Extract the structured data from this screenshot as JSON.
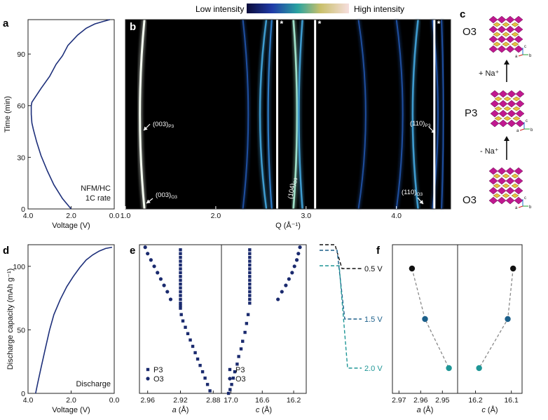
{
  "colorbar": {
    "low_label": "Low intensity",
    "high_label": "High intensity"
  },
  "panel_labels": {
    "a": "a",
    "b": "b",
    "c": "c",
    "d": "d",
    "e": "e",
    "f": "f"
  },
  "chart_data": [
    {
      "panel": "a",
      "type": "line",
      "xlabel": "Voltage (V)",
      "ylabel": "Time (min)",
      "xlim": [
        4.0,
        0.0
      ],
      "ylim": [
        0,
        110
      ],
      "xticks": [
        "4.0",
        "2.0",
        "0.0"
      ],
      "yticks": [
        "0",
        "30",
        "60",
        "90"
      ],
      "annotation": [
        "NFM/HC",
        "1C rate"
      ],
      "color": "#1d2f7a",
      "x": [
        2.0,
        2.4,
        2.8,
        3.1,
        3.4,
        3.6,
        3.75,
        3.82,
        3.85,
        3.85,
        3.82,
        3.4,
        3.0,
        2.7,
        2.4,
        2.15,
        1.7,
        1.3,
        0.9,
        0.5,
        0.2
      ],
      "y": [
        0,
        6,
        14,
        22,
        31,
        39,
        46,
        50,
        55,
        60,
        62,
        70,
        77,
        84,
        89,
        95,
        101,
        105,
        107.5,
        109,
        110
      ]
    },
    {
      "panel": "b",
      "type": "heatmap",
      "xlabel": "Q (Å⁻¹)",
      "xlim": [
        1.0,
        4.6
      ],
      "xticks": [
        "1.0",
        "2.0",
        "3.0",
        "4.0"
      ],
      "excluded_marks": [
        "*",
        "*",
        "*"
      ],
      "peak_labels": [
        "(003)P3",
        "(003)O3",
        "(104)O3",
        "(110)P3",
        "(110)O3"
      ],
      "reflections": [
        {
          "q_bottom": 1.21,
          "q_mid": 1.16,
          "q_top": 1.21,
          "intensity": 1.0
        },
        {
          "q_bottom": 2.3,
          "q_mid": 2.36,
          "q_top": 2.3,
          "intensity": 0.45
        },
        {
          "q_bottom": 2.56,
          "q_mid": 2.49,
          "q_top": 2.56,
          "intensity": 0.7
        },
        {
          "q_bottom": 2.62,
          "q_mid": 2.58,
          "q_top": 2.62,
          "intensity": 0.55
        },
        {
          "q_bottom": 2.86,
          "q_mid": 2.9,
          "q_top": 2.86,
          "intensity": 0.8
        },
        {
          "q_bottom": 2.96,
          "q_mid": 2.92,
          "q_top": 2.96,
          "intensity": 0.7
        },
        {
          "q_bottom": 3.58,
          "q_mid": 3.66,
          "q_top": 3.58,
          "intensity": 0.4
        },
        {
          "q_bottom": 4.0,
          "q_mid": 4.07,
          "q_top": 4.0,
          "intensity": 0.45
        },
        {
          "q_bottom": 4.24,
          "q_mid": 4.18,
          "q_top": 4.24,
          "intensity": 0.75
        },
        {
          "q_bottom": 4.4,
          "q_mid": 4.46,
          "q_top": 4.4,
          "intensity": 0.5
        },
        {
          "q_bottom": 4.5,
          "q_mid": 4.52,
          "q_top": 4.5,
          "intensity": 0.4
        }
      ],
      "excluded_q": [
        2.68,
        3.1,
        4.42
      ]
    },
    {
      "panel": "c",
      "type": "diagram",
      "structures": [
        "O3",
        "P3",
        "O3"
      ],
      "arrows": [
        "+ Na⁺",
        "- Na⁺"
      ],
      "axis_letters": [
        "c",
        "a",
        "b"
      ]
    },
    {
      "panel": "d",
      "type": "line",
      "xlabel": "Voltage (V)",
      "ylabel": "Discharge capacity (mAh g⁻¹)",
      "xlim": [
        4.0,
        0.0
      ],
      "ylim": [
        0,
        117
      ],
      "xticks": [
        "4.0",
        "2.0",
        "0.0"
      ],
      "yticks": [
        "0",
        "50",
        "100"
      ],
      "annotation": "Discharge",
      "color": "#1d2f7a",
      "x": [
        3.65,
        3.55,
        3.4,
        3.2,
        3.0,
        2.8,
        2.5,
        2.2,
        1.9,
        1.6,
        1.3,
        1.0,
        0.7,
        0.4,
        0.1
      ],
      "y": [
        0,
        8,
        20,
        35,
        50,
        62,
        74,
        84,
        92,
        99,
        105,
        109,
        112,
        114,
        115
      ]
    },
    {
      "panel": "e",
      "type": "scatter",
      "subpanels": [
        {
          "xlabel_var": "a",
          "xlabel_unit": " (Å)",
          "xlim": [
            2.97,
            2.87
          ],
          "xticks": [
            "2.96",
            "2.92",
            "2.88"
          ],
          "legend": [
            "P3",
            "O3"
          ],
          "series": [
            {
              "name": "P3",
              "marker": "square",
              "x": [
                2.92,
                2.92,
                2.92,
                2.92,
                2.92,
                2.92,
                2.92,
                2.92,
                2.92,
                2.92,
                2.92,
                2.92,
                2.92,
                2.92,
                2.92,
                2.92,
                2.92,
                2.919,
                2.917,
                2.914,
                2.911,
                2.908,
                2.905,
                2.902,
                2.899,
                2.896,
                2.893,
                2.89,
                2.887,
                2.884
              ],
              "y": [
                113,
                110,
                107,
                104,
                101,
                98,
                95,
                92,
                89,
                86,
                83,
                80,
                77,
                74,
                71,
                69,
                67,
                62,
                57,
                52,
                47,
                42,
                37,
                32,
                27,
                22,
                17,
                12,
                7,
                2
              ]
            },
            {
              "name": "O3",
              "marker": "circle",
              "x": [
                2.963,
                2.96,
                2.956,
                2.952,
                2.948,
                2.944,
                2.94,
                2.936,
                2.932
              ],
              "y": [
                115,
                110,
                105,
                100,
                95,
                90,
                85,
                80,
                74
              ]
            }
          ]
        },
        {
          "xlabel_var": "c",
          "xlabel_unit": " (Å)",
          "xlim": [
            17.12,
            16.04
          ],
          "xticks": [
            "17.0",
            "16.6",
            "16.2"
          ],
          "legend": [
            "P3",
            "O3"
          ],
          "series": [
            {
              "name": "P3",
              "marker": "square",
              "x": [
                16.76,
                16.76,
                16.76,
                16.76,
                16.76,
                16.76,
                16.76,
                16.76,
                16.76,
                16.76,
                16.76,
                16.76,
                16.76,
                16.76,
                16.76,
                16.78,
                16.8,
                16.82,
                16.85,
                16.87,
                16.9,
                16.92,
                16.95,
                16.97,
                16.99,
                17.01,
                17.03
              ],
              "y": [
                113,
                110,
                107,
                104,
                101,
                98,
                95,
                92,
                89,
                86,
                83,
                80,
                77,
                74,
                71,
                62,
                55,
                48,
                41,
                35,
                29,
                23,
                17,
                12,
                7,
                3,
                0
              ]
            },
            {
              "name": "O3",
              "marker": "circle",
              "x": [
                16.12,
                16.14,
                16.16,
                16.19,
                16.22,
                16.26,
                16.3,
                16.35,
                16.4
              ],
              "y": [
                115,
                110,
                105,
                100,
                95,
                90,
                85,
                80,
                74
              ]
            }
          ]
        }
      ]
    },
    {
      "panel": "f",
      "type": "scatter",
      "voltage_labels": [
        "0.5 V",
        "1.5 V",
        "2.0 V"
      ],
      "voltage_colors": [
        "#111111",
        "#1b5f8a",
        "#1e9696"
      ],
      "subpanels": [
        {
          "xlabel_var": "a",
          "xlabel_unit": " (Å)",
          "xlim": [
            2.973,
            2.943
          ],
          "xticks": [
            "2.97",
            "2.96",
            "2.95"
          ],
          "x": [
            2.964,
            2.958,
            2.947
          ]
        },
        {
          "xlabel_var": "c",
          "xlabel_unit": " (Å)",
          "xlim": [
            16.25,
            16.07
          ],
          "xticks": [
            "16.2",
            "16.1"
          ],
          "x": [
            16.095,
            16.11,
            16.19
          ]
        }
      ]
    }
  ]
}
